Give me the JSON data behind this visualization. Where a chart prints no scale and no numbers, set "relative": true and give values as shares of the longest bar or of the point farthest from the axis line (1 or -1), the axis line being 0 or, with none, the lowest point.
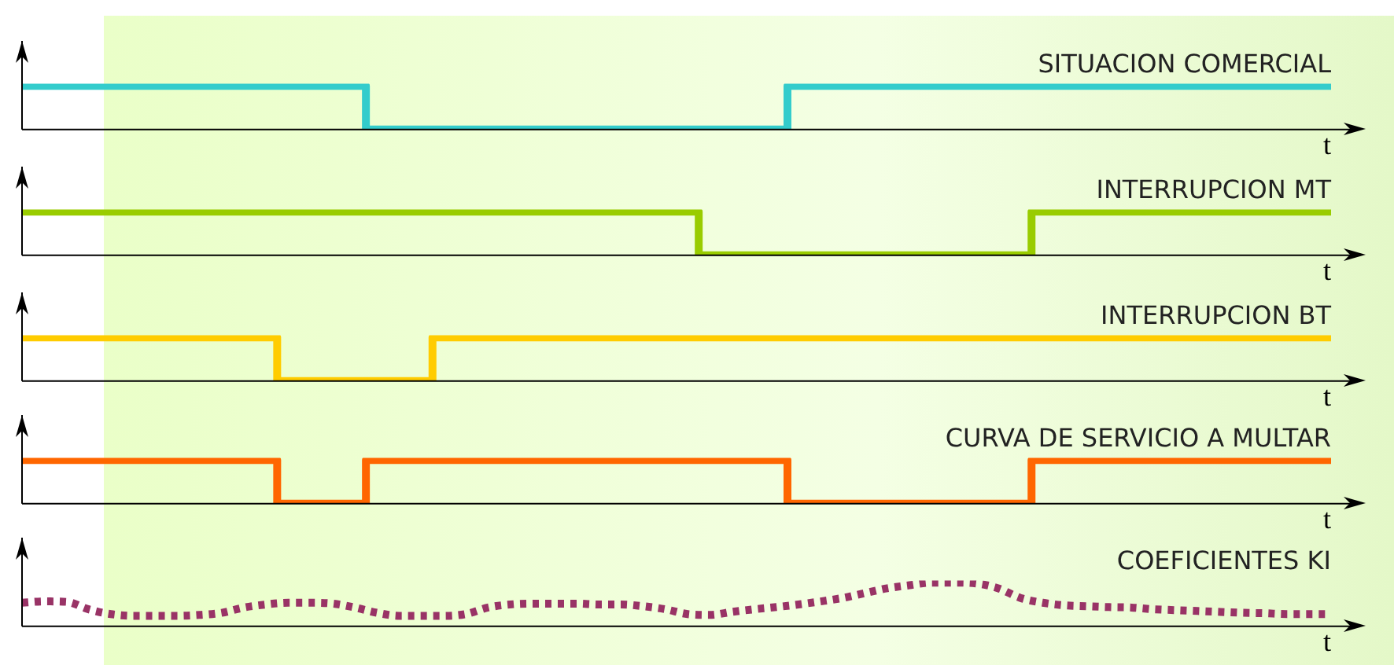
{
  "chart_data": [
    {
      "type": "step",
      "title": "SITUACION COMERCIAL",
      "xlabel": "t",
      "relative": true,
      "tick_labels": false,
      "color": "#33cccc",
      "categories": [
        null,
        null,
        null,
        null,
        null,
        null,
        null,
        null,
        null,
        null,
        null,
        null,
        null,
        null,
        null,
        null,
        null,
        null,
        null,
        null,
        null,
        null,
        null,
        null,
        null,
        null,
        null,
        null,
        null,
        null,
        null,
        null,
        null,
        null,
        null,
        null,
        null,
        null,
        null,
        null,
        null,
        null,
        null,
        null,
        null,
        null,
        null,
        null,
        null,
        null,
        null,
        null,
        null,
        null,
        null,
        null,
        null,
        null,
        null,
        null
      ],
      "values": [
        1,
        1,
        1,
        1,
        1,
        1,
        1,
        1,
        1,
        1,
        1,
        1,
        1,
        1,
        1,
        1,
        0,
        0,
        0,
        0,
        0,
        0,
        0,
        0,
        0,
        0,
        0,
        0,
        0,
        0,
        0,
        0,
        0,
        0,
        0,
        1,
        1,
        1,
        1,
        1,
        1,
        1,
        1,
        1,
        1,
        1,
        1,
        1,
        1,
        1,
        1,
        1,
        1,
        1,
        1,
        1,
        1,
        1,
        1,
        1
      ]
    },
    {
      "type": "step",
      "title": "INTERRUPCION MT",
      "xlabel": "t",
      "relative": true,
      "tick_labels": false,
      "color": "#99cc00",
      "categories": [
        null,
        null,
        null,
        null,
        null,
        null,
        null,
        null,
        null,
        null,
        null,
        null,
        null,
        null,
        null,
        null,
        null,
        null,
        null,
        null,
        null,
        null,
        null,
        null,
        null,
        null,
        null,
        null,
        null,
        null,
        null,
        null,
        null,
        null,
        null,
        null,
        null,
        null,
        null,
        null,
        null,
        null,
        null,
        null,
        null,
        null,
        null,
        null,
        null,
        null,
        null,
        null,
        null,
        null,
        null,
        null,
        null,
        null,
        null,
        null
      ],
      "values": [
        1,
        1,
        1,
        1,
        1,
        1,
        1,
        1,
        1,
        1,
        1,
        1,
        1,
        1,
        1,
        1,
        1,
        1,
        1,
        1,
        1,
        1,
        1,
        1,
        1,
        1,
        1,
        1,
        1,
        1,
        1,
        0,
        0,
        0,
        0,
        0,
        0,
        0,
        0,
        0,
        0,
        0,
        0,
        0,
        0,
        0,
        1,
        1,
        1,
        1,
        1,
        1,
        1,
        1,
        1,
        1,
        1,
        1,
        1,
        1
      ]
    },
    {
      "type": "step",
      "title": "INTERRUPCION BT",
      "xlabel": "t",
      "relative": true,
      "tick_labels": false,
      "color": "#ffcc00",
      "categories": [
        null,
        null,
        null,
        null,
        null,
        null,
        null,
        null,
        null,
        null,
        null,
        null,
        null,
        null,
        null,
        null,
        null,
        null,
        null,
        null,
        null,
        null,
        null,
        null,
        null,
        null,
        null,
        null,
        null,
        null,
        null,
        null,
        null,
        null,
        null,
        null,
        null,
        null,
        null,
        null,
        null,
        null,
        null,
        null,
        null,
        null,
        null,
        null,
        null,
        null,
        null,
        null,
        null,
        null,
        null,
        null,
        null,
        null,
        null,
        null
      ],
      "values": [
        1,
        1,
        1,
        1,
        1,
        1,
        1,
        1,
        1,
        1,
        1,
        1,
        0,
        0,
        0,
        0,
        0,
        0,
        0,
        1,
        1,
        1,
        1,
        1,
        1,
        1,
        1,
        1,
        1,
        1,
        1,
        1,
        1,
        1,
        1,
        1,
        1,
        1,
        1,
        1,
        1,
        1,
        1,
        1,
        1,
        1,
        1,
        1,
        1,
        1,
        1,
        1,
        1,
        1,
        1,
        1,
        1,
        1,
        1,
        1
      ]
    },
    {
      "type": "step",
      "title": "CURVA DE SERVICIO A MULTAR",
      "xlabel": "t",
      "relative": true,
      "tick_labels": false,
      "color": "#ff6600",
      "categories": [
        null,
        null,
        null,
        null,
        null,
        null,
        null,
        null,
        null,
        null,
        null,
        null,
        null,
        null,
        null,
        null,
        null,
        null,
        null,
        null,
        null,
        null,
        null,
        null,
        null,
        null,
        null,
        null,
        null,
        null,
        null,
        null,
        null,
        null,
        null,
        null,
        null,
        null,
        null,
        null,
        null,
        null,
        null,
        null,
        null,
        null,
        null,
        null,
        null,
        null,
        null,
        null,
        null,
        null,
        null,
        null,
        null,
        null,
        null,
        null
      ],
      "values": [
        1,
        1,
        1,
        1,
        1,
        1,
        1,
        1,
        1,
        1,
        1,
        1,
        0,
        0,
        0,
        0,
        1,
        1,
        1,
        1,
        1,
        1,
        1,
        1,
        1,
        1,
        1,
        1,
        1,
        1,
        1,
        1,
        1,
        1,
        1,
        0,
        0,
        0,
        0,
        0,
        0,
        0,
        0,
        0,
        0,
        0,
        1,
        1,
        1,
        1,
        1,
        1,
        1,
        1,
        1,
        1,
        1,
        1,
        1,
        1
      ]
    },
    {
      "type": "line",
      "title": "COEFICIENTES KI",
      "xlabel": "t",
      "relative": true,
      "tick_labels": false,
      "color": "#993366",
      "line_style": "dotted",
      "categories": [
        null,
        null,
        null,
        null,
        null,
        null,
        null,
        null,
        null,
        null,
        null,
        null,
        null,
        null,
        null,
        null,
        null,
        null,
        null,
        null,
        null,
        null,
        null,
        null,
        null,
        null,
        null,
        null,
        null,
        null,
        null,
        null,
        null,
        null,
        null,
        null,
        null,
        null,
        null,
        null,
        null,
        null,
        null,
        null,
        null,
        null,
        null,
        null,
        null,
        null,
        null,
        null,
        null,
        null,
        null,
        null,
        null,
        null,
        null,
        null
      ],
      "values": [
        0.54,
        0.57,
        0.56,
        0.39,
        0.28,
        0.24,
        0.24,
        0.24,
        0.26,
        0.31,
        0.43,
        0.5,
        0.54,
        0.54,
        0.52,
        0.43,
        0.31,
        0.24,
        0.24,
        0.24,
        0.28,
        0.43,
        0.5,
        0.52,
        0.52,
        0.52,
        0.5,
        0.5,
        0.46,
        0.39,
        0.28,
        0.26,
        0.33,
        0.39,
        0.44,
        0.5,
        0.57,
        0.65,
        0.76,
        0.87,
        0.94,
        1,
        1,
        0.98,
        0.87,
        0.65,
        0.54,
        0.48,
        0.46,
        0.44,
        0.43,
        0.39,
        0.37,
        0.35,
        0.33,
        0.31,
        0.3,
        0.28,
        0.28,
        0.28
      ]
    }
  ]
}
